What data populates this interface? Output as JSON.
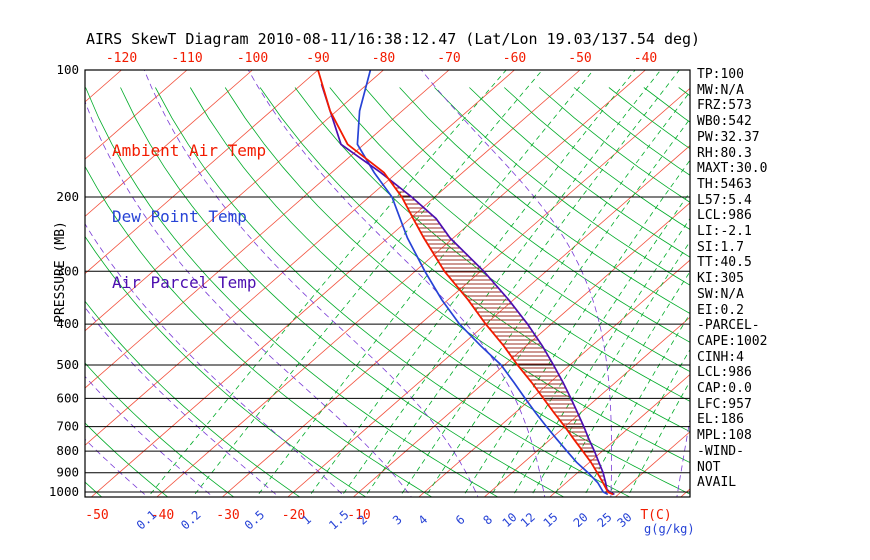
{
  "header": {
    "title": "AIRS SkewT Diagram 2010-08-11/16:38:12.47 (Lat/Lon 19.03/137.54 deg)"
  },
  "side_panel": {
    "lines": [
      "TP:100",
      "MW:N/A",
      "FRZ:573",
      "WB0:542",
      "PW:32.37",
      "RH:80.3",
      "MAXT:30.0",
      "TH:5463",
      "L57:5.4",
      "LCL:986",
      "LI:-2.1",
      "SI:1.7",
      "TT:40.5",
      "KI:305",
      "SW:N/A",
      "EI:0.2",
      "-PARCEL-",
      "CAPE:1002",
      "CINH:4",
      "LCL:986",
      "CAP:0.0",
      "LFC:957",
      "EL:186",
      "MPL:108",
      "-WIND-",
      "NOT",
      "AVAIL"
    ]
  },
  "chart_data": {
    "type": "line",
    "variant": "skew-t-log-p",
    "title": "AIRS SkewT Diagram 2010-08-11/16:38:12.47 (Lat/Lon 19.03/137.54 deg)",
    "pressure_axis": {
      "label": "PRESSURE (MB)",
      "scale": "log",
      "range": [
        100,
        1050
      ],
      "ticks": [
        100,
        200,
        300,
        400,
        500,
        600,
        700,
        800,
        900,
        1000
      ]
    },
    "temp_axis": {
      "unit": "T(C)",
      "top_tick_labels": [
        -120,
        -110,
        -100,
        -90,
        -80,
        -70,
        -60,
        -50,
        -40
      ],
      "bottom_tick_labels": [
        -50,
        -40,
        -30,
        -20,
        -10
      ],
      "isotherm_step_c": 10
    },
    "mixing_ratio_axis": {
      "unit": "g(g/kg)",
      "ticks": [
        0.1,
        0.2,
        0.5,
        1,
        1.5,
        2,
        3,
        4,
        6,
        8,
        10,
        12,
        15,
        20,
        25,
        30
      ]
    },
    "series": [
      {
        "name": "Ambient Air Temp",
        "color": "#f21b00",
        "points": [
          [
            100,
            -90
          ],
          [
            125,
            -81
          ],
          [
            150,
            -72.5
          ],
          [
            175,
            -62
          ],
          [
            200,
            -55
          ],
          [
            225,
            -49.5
          ],
          [
            250,
            -44.5
          ],
          [
            300,
            -35.5
          ],
          [
            350,
            -27
          ],
          [
            400,
            -20
          ],
          [
            450,
            -13.5
          ],
          [
            500,
            -8
          ],
          [
            550,
            -2.8
          ],
          [
            600,
            1.8
          ],
          [
            650,
            6
          ],
          [
            700,
            10
          ],
          [
            750,
            13.6
          ],
          [
            800,
            17
          ],
          [
            850,
            20.2
          ],
          [
            900,
            23
          ],
          [
            950,
            25.6
          ],
          [
            1000,
            28
          ],
          [
            1013,
            29.2
          ]
        ]
      },
      {
        "name": "Dew Point Temp",
        "color": "#2743d6",
        "points": [
          [
            100,
            -82
          ],
          [
            125,
            -76.5
          ],
          [
            150,
            -71
          ],
          [
            175,
            -63.5
          ],
          [
            200,
            -56.5
          ],
          [
            225,
            -51.5
          ],
          [
            250,
            -47
          ],
          [
            300,
            -38.5
          ],
          [
            350,
            -31
          ],
          [
            400,
            -24
          ],
          [
            450,
            -17
          ],
          [
            500,
            -10.5
          ],
          [
            550,
            -5.5
          ],
          [
            600,
            -1
          ],
          [
            650,
            3.2
          ],
          [
            700,
            7.2
          ],
          [
            750,
            11
          ],
          [
            800,
            14.6
          ],
          [
            850,
            18
          ],
          [
            900,
            21.6
          ],
          [
            950,
            24.8
          ],
          [
            1000,
            27.3
          ],
          [
            1013,
            28.4
          ]
        ]
      },
      {
        "name": "Air Parcel Temp",
        "color": "#4c0fb0",
        "points": [
          [
            108,
            -87
          ],
          [
            125,
            -81
          ],
          [
            150,
            -73.5
          ],
          [
            175,
            -62.5
          ],
          [
            200,
            -53.5
          ],
          [
            225,
            -46
          ],
          [
            250,
            -40.5
          ],
          [
            300,
            -29.5
          ],
          [
            350,
            -20.8
          ],
          [
            400,
            -13.6
          ],
          [
            450,
            -7.6
          ],
          [
            500,
            -2.5
          ],
          [
            550,
            2
          ],
          [
            600,
            6
          ],
          [
            650,
            9.6
          ],
          [
            700,
            12.9
          ],
          [
            750,
            15.9
          ],
          [
            800,
            18.8
          ],
          [
            850,
            21.4
          ],
          [
            900,
            23.9
          ],
          [
            950,
            26
          ],
          [
            986,
            27.4
          ],
          [
            1000,
            28.3
          ],
          [
            1013,
            29.4
          ]
        ]
      }
    ],
    "cape_hatch": {
      "el_mb": 186,
      "lfc_mb": 957
    },
    "background": {
      "isotherm_c": {
        "min": -180,
        "max": 40,
        "step": 10
      },
      "dry_adiabat_theta_k": {
        "min": 203,
        "max": 473,
        "step": 10
      },
      "moist_adiabat_start_c": {
        "min": -80,
        "max": 40,
        "step": 10
      }
    },
    "colors": {
      "isotherm": "#f2503c",
      "tick_red": "#f21b00",
      "dry_adiabat": "#00ab28",
      "mixing": "#00ab28",
      "moist_adiabat": "#7a3bd6",
      "pressure_line": "#000000",
      "hatch": "#9e3226"
    }
  }
}
